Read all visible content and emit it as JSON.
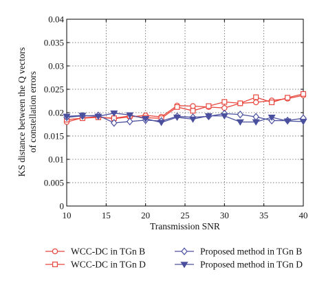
{
  "chart_data": {
    "type": "line",
    "xlabel": "Transmission SNR",
    "ylabel_line1": "KS distance between the Q vectors",
    "ylabel_line2": "of constellation errors",
    "xlim": [
      10,
      40
    ],
    "ylim": [
      0,
      0.04
    ],
    "xticks": [
      10,
      15,
      20,
      25,
      30,
      35,
      40
    ],
    "xtick_labels": [
      "10",
      "15",
      "20",
      "25",
      "30",
      "35",
      "40"
    ],
    "yticks": [
      0,
      0.005,
      0.01,
      0.015,
      0.02,
      0.025,
      0.03,
      0.035,
      0.04
    ],
    "ytick_labels": [
      "0",
      "0.005",
      "0.01",
      "0.015",
      "0.02",
      "0.025",
      "0.03",
      "0.035",
      "0.04"
    ],
    "grid": true,
    "legend_position": "bottom",
    "x": [
      10,
      12,
      14,
      16,
      18,
      20,
      22,
      24,
      26,
      28,
      30,
      32,
      34,
      36,
      38,
      40
    ],
    "series": [
      {
        "name": "WCC-DC in TGn B",
        "color": "#e8453c",
        "marker": "circle",
        "values": [
          0.018,
          0.0189,
          0.0191,
          0.0187,
          0.0191,
          0.0194,
          0.0191,
          0.0215,
          0.0214,
          0.0212,
          0.021,
          0.022,
          0.0222,
          0.0226,
          0.023,
          0.0237
        ]
      },
      {
        "name": "WCC-DC in TGn D",
        "color": "#e8453c",
        "marker": "square",
        "values": [
          0.0185,
          0.0188,
          0.019,
          0.0188,
          0.0193,
          0.0189,
          0.0188,
          0.0212,
          0.0204,
          0.0214,
          0.0223,
          0.022,
          0.0233,
          0.0222,
          0.0232,
          0.024
        ]
      },
      {
        "name": "Proposed method in TGn B",
        "color": "#4a4f9e",
        "marker": "diamond",
        "values": [
          0.019,
          0.0193,
          0.0194,
          0.0178,
          0.0181,
          0.0184,
          0.0182,
          0.0192,
          0.019,
          0.0192,
          0.0198,
          0.0196,
          0.0191,
          0.0183,
          0.0183,
          0.0188
        ]
      },
      {
        "name": "Proposed method in TGn D",
        "color": "#4a4f9e",
        "marker": "triangle-down",
        "values": [
          0.0192,
          0.0194,
          0.0192,
          0.0199,
          0.0195,
          0.0187,
          0.0179,
          0.019,
          0.0186,
          0.0193,
          0.0193,
          0.018,
          0.018,
          0.019,
          0.0182,
          0.0181
        ]
      }
    ]
  }
}
